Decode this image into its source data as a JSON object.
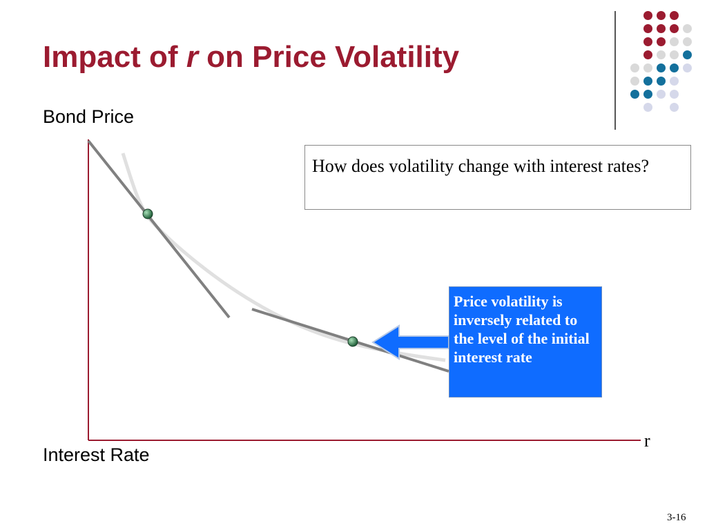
{
  "slide": {
    "title_before": "Impact of",
    "title_var": "r",
    "title_after": "on Price Volatility",
    "page_number": "3-16"
  },
  "decoration": {
    "dot_colors": {
      "red": "#9b1b30",
      "gray": "#d9d9d9",
      "blue": "#13709c",
      "lavender": "#d5d8ea"
    }
  },
  "diagram": {
    "y_axis_label": "Bond Price",
    "x_axis_label": "Interest Rate",
    "x_axis_end_label": "r",
    "question": "How does volatility change with interest rates?",
    "callout": "Price volatility is inversely related to the level of the initial interest rate",
    "colors": {
      "axis": "#9b1b30",
      "curve": "#e0e0e0",
      "tangent": "#808080",
      "arrow": "#0f6cff",
      "point": "#2e7d4f"
    }
  }
}
